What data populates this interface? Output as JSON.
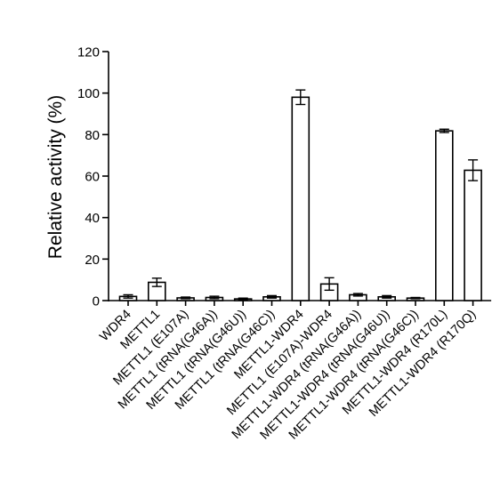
{
  "chart_data": {
    "type": "bar",
    "title": "",
    "xlabel": "",
    "ylabel": "Relative activity (%)",
    "ylim": [
      0,
      120
    ],
    "yticks": [
      0,
      20,
      40,
      60,
      80,
      100,
      120
    ],
    "grid": false,
    "legend": "none",
    "bar_fill": "#ffffff",
    "bar_stroke": "#000000",
    "categories": [
      "WDR4",
      "METTL1",
      "METTL1 (E107A)",
      "METTL1 (tRNA(G46A))",
      "METTL1 (tRNA(G46U))",
      "METTL1 (tRNA(G46C))",
      "METTL1-WDR4",
      "METTL1 (E107A)-WDR4",
      "METTL1-WDR4 (tRNA(G46A))",
      "METTL1-WDR4 (tRNA(G46U))",
      "METTL1-WDR4 (tRNA(G46C))",
      "METTL1-WDR4 (R170L)",
      "METTL1-WDR4 (R170Q)"
    ],
    "values": [
      2.0,
      8.8,
      1.3,
      1.5,
      0.8,
      1.8,
      98.0,
      8.0,
      2.8,
      1.8,
      1.2,
      81.8,
      62.8
    ],
    "errors": [
      0.8,
      2.0,
      0.4,
      0.6,
      0.4,
      0.6,
      3.5,
      3.0,
      0.6,
      0.6,
      0.3,
      0.8,
      5.0
    ]
  }
}
